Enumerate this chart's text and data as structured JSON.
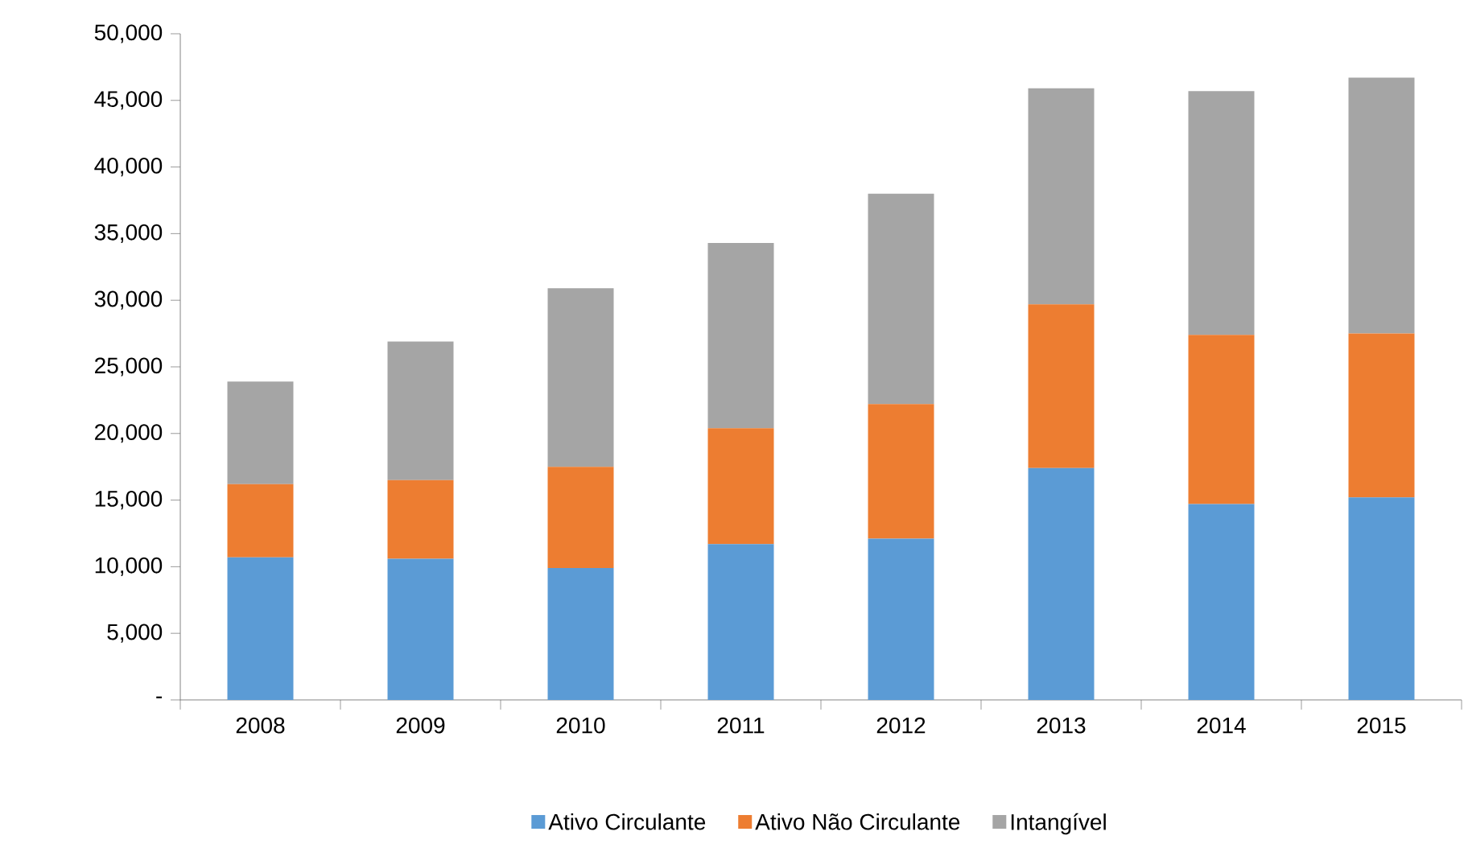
{
  "chart_data": {
    "type": "bar",
    "stacked": true,
    "categories": [
      "2008",
      "2009",
      "2010",
      "2011",
      "2012",
      "2013",
      "2014",
      "2015"
    ],
    "series": [
      {
        "name": "Ativo Circulante",
        "color": "#5b9bd5",
        "values": [
          10700,
          10600,
          9900,
          11700,
          12100,
          17400,
          14700,
          15200
        ]
      },
      {
        "name": "Ativo Não Circulante",
        "color": "#ed7d31",
        "values": [
          5500,
          5900,
          7600,
          8700,
          10100,
          12300,
          12700,
          12300
        ]
      },
      {
        "name": "Intangível",
        "color": "#a5a5a5",
        "values": [
          7700,
          10400,
          13400,
          13900,
          15800,
          16200,
          18300,
          19200
        ]
      }
    ],
    "ylim": [
      0,
      50000
    ],
    "yticks": [
      {
        "value": 0,
        "label": "-"
      },
      {
        "value": 5000,
        "label": "5,000"
      },
      {
        "value": 10000,
        "label": "10,000"
      },
      {
        "value": 15000,
        "label": "15,000"
      },
      {
        "value": 20000,
        "label": "20,000"
      },
      {
        "value": 25000,
        "label": "25,000"
      },
      {
        "value": 30000,
        "label": "30,000"
      },
      {
        "value": 35000,
        "label": "35,000"
      },
      {
        "value": 40000,
        "label": "40,000"
      },
      {
        "value": 45000,
        "label": "45,000"
      },
      {
        "value": 50000,
        "label": "50,000"
      }
    ],
    "grid": false,
    "legend": "bottom"
  }
}
